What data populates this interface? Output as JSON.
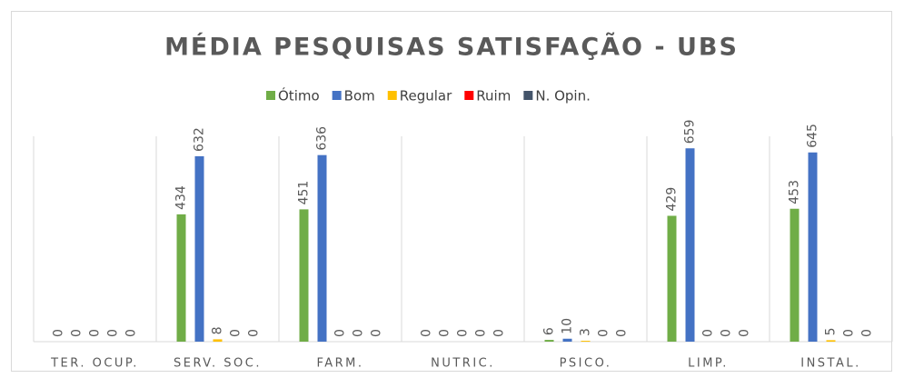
{
  "chart_data": {
    "type": "bar",
    "title": "MÉDIA PESQUISAS SATISFAÇÃO - UBS",
    "categories": [
      "TER. OCUP.",
      "SERV. SOC.",
      "FARM.",
      "NUTRIC.",
      "PSICO.",
      "LIMP.",
      "INSTAL."
    ],
    "series": [
      {
        "name": "Ótimo",
        "color": "#70ad47",
        "values": [
          0,
          434,
          451,
          0,
          6,
          429,
          453
        ]
      },
      {
        "name": "Bom",
        "color": "#4472c4",
        "values": [
          0,
          632,
          636,
          0,
          10,
          659,
          645
        ]
      },
      {
        "name": "Regular",
        "color": "#ffc000",
        "values": [
          0,
          8,
          0,
          0,
          3,
          0,
          5
        ]
      },
      {
        "name": "Ruim",
        "color": "#ff0000",
        "values": [
          0,
          0,
          0,
          0,
          0,
          0,
          0
        ]
      },
      {
        "name": "N. Opin.",
        "color": "#44546a",
        "values": [
          0,
          0,
          0,
          0,
          0,
          0,
          0
        ]
      }
    ],
    "ylim": [
      0,
      700
    ],
    "legend": "top",
    "data_labels": true
  }
}
